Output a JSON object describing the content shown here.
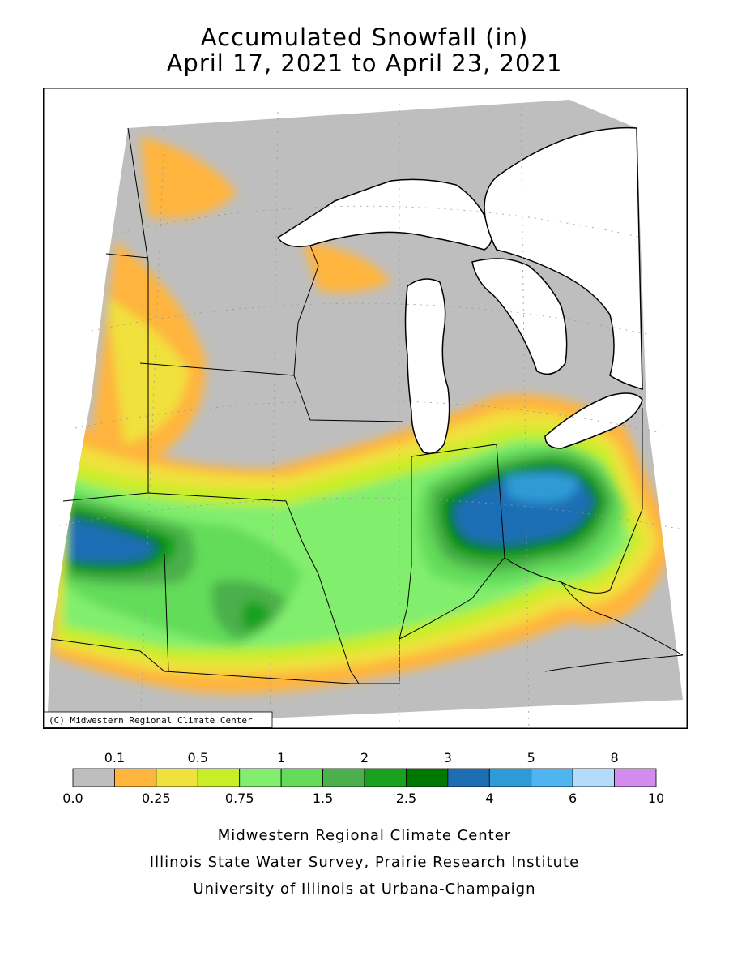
{
  "title": {
    "line1": "Accumulated Snowfall (in)",
    "line2": "April 17, 2021 to April 23, 2021"
  },
  "map": {
    "copyright": "(C) Midwestern Regional Climate Center",
    "colors": {
      "land_no_snow": "#bebebe",
      "water": "#ffffff",
      "border": "#000000"
    }
  },
  "legend": {
    "top_labels": [
      "0.1",
      "0.5",
      "1",
      "2",
      "3",
      "5",
      "8"
    ],
    "bottom_labels": [
      "0.0",
      "0.25",
      "0.75",
      "1.5",
      "2.5",
      "4",
      "6",
      "10"
    ],
    "colors": [
      "#bebebe",
      "#ffb43c",
      "#f0e13c",
      "#c8ee28",
      "#82ee6e",
      "#64dc5a",
      "#4bb04b",
      "#19a01e",
      "#007800",
      "#1e6eb4",
      "#2d9bd7",
      "#50b4f0",
      "#b4dcfa",
      "#d28cf0"
    ]
  },
  "footer": {
    "line1": "Midwestern Regional Climate Center",
    "line2": "Illinois State Water Survey, Prairie Research Institute",
    "line3": "University of Illinois at Urbana-Champaign"
  }
}
